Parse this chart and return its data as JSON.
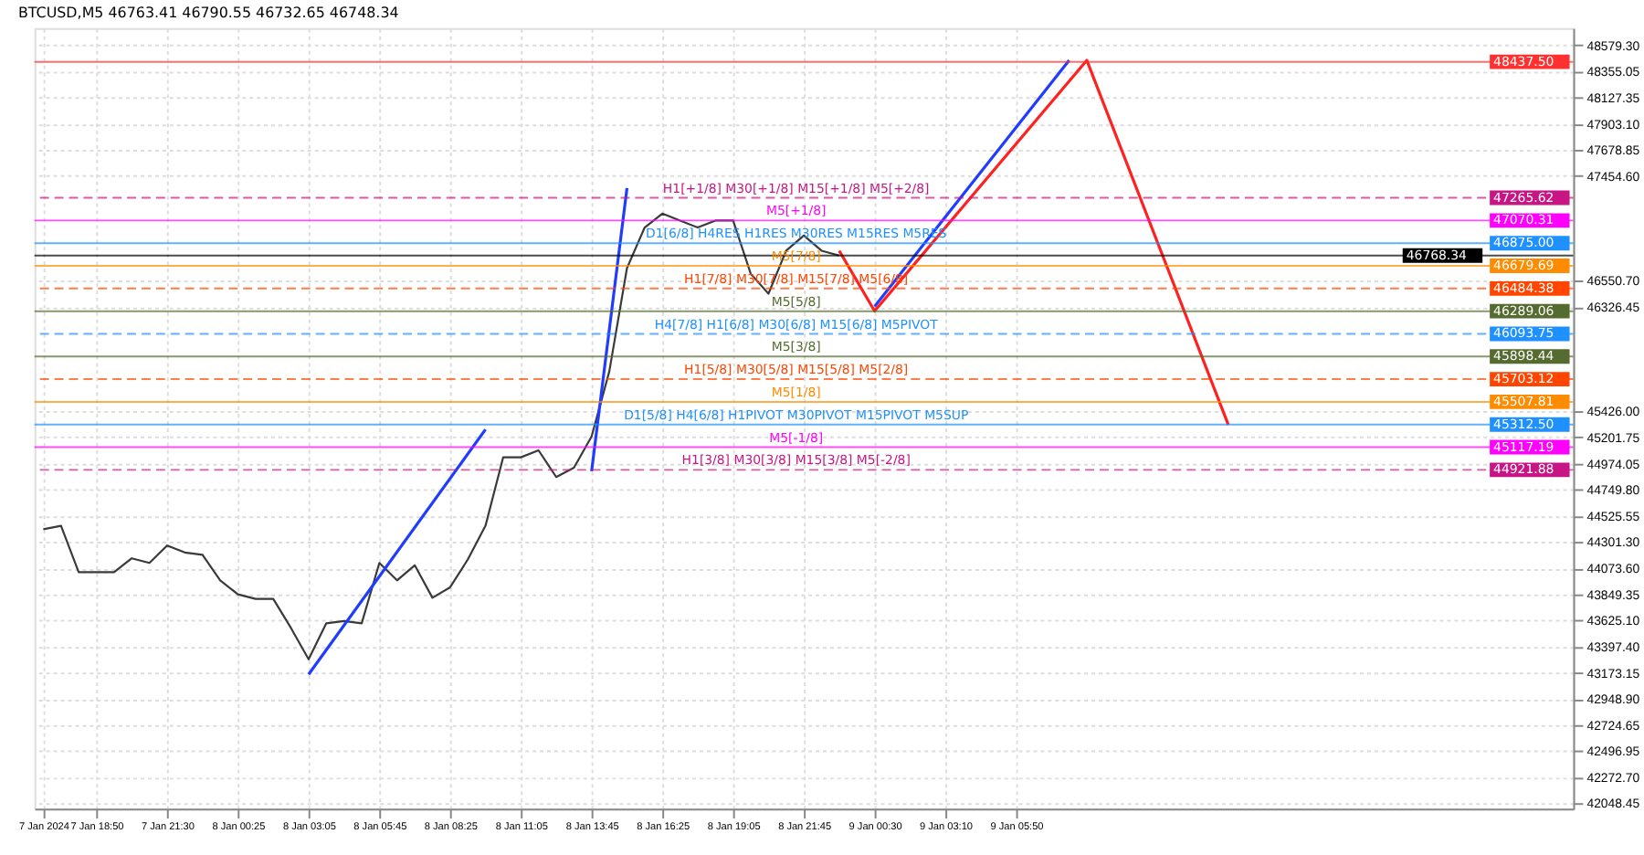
{
  "chart_data": {
    "type": "line",
    "title": "BTCUSD,M5  46763.41 46790.55 46732.65 46748.34",
    "categories": [
      "7 Jan 2024",
      null,
      null,
      "7 Jan 18:50",
      null,
      null,
      null,
      "7 Jan 21:30",
      null,
      null,
      null,
      "8 Jan 00:25",
      null,
      null,
      null,
      "8 Jan 03:05",
      null,
      null,
      null,
      "8 Jan 05:45",
      null,
      null,
      null,
      "8 Jan 08:25",
      null,
      null,
      null,
      "8 Jan 11:05",
      null,
      null,
      null,
      "8 Jan 13:45",
      null,
      null,
      null,
      "8 Jan 16:25",
      null,
      null,
      null,
      "8 Jan 19:05",
      null,
      null,
      null,
      "8 Jan 21:45",
      null,
      null,
      null,
      "9 Jan 00:30",
      null,
      null,
      null,
      "9 Jan 03:10",
      null,
      null,
      null,
      "9 Jan 05:50",
      null,
      null,
      null,
      null,
      null,
      null,
      null,
      null,
      null,
      null,
      null,
      null,
      null,
      null,
      null,
      null,
      null,
      null,
      null,
      null,
      null,
      null,
      null,
      null,
      null,
      null,
      null,
      null,
      null,
      null,
      null
    ],
    "series": [
      {
        "color": "#3a3a3a",
        "values": [
          44410,
          44440,
          44040,
          44040,
          44040,
          44160,
          44120,
          44270,
          44210,
          44190,
          43970,
          43850,
          43810,
          43810,
          43560,
          43290,
          43600,
          43620,
          43600,
          44120,
          43970,
          44100,
          43820,
          43910,
          44150,
          44440,
          45030,
          45030,
          45090,
          44860,
          44940,
          45210,
          45770,
          46660,
          47010,
          47130,
          47070,
          47010,
          47070,
          47070,
          46610,
          46440,
          46810,
          46940,
          46810,
          46768,
          null,
          null,
          null,
          null,
          null,
          null,
          null,
          null,
          null,
          null,
          null,
          null,
          null,
          null,
          null,
          null,
          null,
          null,
          null,
          null,
          null,
          null,
          null,
          null,
          null,
          null,
          null,
          null,
          null,
          null,
          null,
          null,
          null,
          null,
          null,
          null,
          null,
          null,
          null,
          null,
          null
        ]
      },
      {
        "color": "#1f3cff",
        "values": [
          null,
          null,
          null,
          null,
          null,
          null,
          null,
          null,
          null,
          null,
          null,
          null,
          null,
          null,
          null,
          43160,
          null,
          null,
          null,
          null,
          null,
          null,
          null,
          null,
          null,
          45270,
          null,
          null,
          null,
          null,
          null,
          null,
          null,
          null,
          null,
          null,
          null,
          null,
          null,
          null,
          null,
          null,
          null,
          null,
          null,
          null,
          null,
          null,
          null,
          null,
          null,
          null,
          null,
          null,
          null,
          null,
          null,
          null,
          null,
          null,
          null,
          null,
          null,
          null,
          null,
          null,
          null,
          null,
          null,
          null,
          null,
          null,
          null,
          null,
          null,
          null,
          null,
          null,
          null,
          null,
          null,
          null,
          null,
          null,
          null,
          null,
          null
        ]
      },
      {
        "color": "#1f3cff",
        "values": [
          null,
          null,
          null,
          null,
          null,
          null,
          null,
          null,
          null,
          null,
          null,
          null,
          null,
          null,
          null,
          null,
          null,
          null,
          null,
          null,
          null,
          null,
          null,
          null,
          null,
          null,
          null,
          null,
          null,
          null,
          null,
          44910,
          null,
          47350,
          null,
          null,
          null,
          null,
          null,
          null,
          null,
          null,
          null,
          null,
          null,
          null,
          null,
          null,
          null,
          null,
          null,
          null,
          null,
          null,
          null,
          null,
          null,
          null,
          null,
          null,
          null,
          null,
          null,
          null,
          null,
          null,
          null,
          null,
          null,
          null,
          null,
          null,
          null,
          null,
          null,
          null,
          null,
          null,
          null,
          null,
          null,
          null,
          null,
          null,
          null,
          null,
          null
        ]
      },
      {
        "color": "#1f3cff",
        "values": [
          null,
          null,
          null,
          null,
          null,
          null,
          null,
          null,
          null,
          null,
          null,
          null,
          null,
          null,
          null,
          null,
          null,
          null,
          null,
          null,
          null,
          null,
          null,
          null,
          null,
          null,
          null,
          null,
          null,
          null,
          null,
          null,
          null,
          null,
          null,
          null,
          null,
          null,
          null,
          null,
          null,
          null,
          null,
          null,
          null,
          null,
          null,
          46330,
          null,
          null,
          null,
          null,
          null,
          null,
          null,
          null,
          null,
          null,
          48450,
          null,
          null,
          null,
          null,
          null,
          null,
          null,
          null,
          null,
          null,
          null,
          null,
          null,
          null,
          null,
          null,
          null,
          null,
          null,
          null,
          null,
          null,
          null,
          null,
          null,
          null,
          null,
          null
        ]
      },
      {
        "color": "#ff2020",
        "values": [
          null,
          null,
          null,
          null,
          null,
          null,
          null,
          null,
          null,
          null,
          null,
          null,
          null,
          null,
          null,
          null,
          null,
          null,
          null,
          null,
          null,
          null,
          null,
          null,
          null,
          null,
          null,
          null,
          null,
          null,
          null,
          null,
          null,
          null,
          null,
          null,
          null,
          null,
          null,
          null,
          null,
          null,
          null,
          null,
          null,
          46810,
          null,
          46290,
          null,
          null,
          null,
          null,
          null,
          null,
          null,
          null,
          null,
          null,
          null,
          48450,
          null,
          null,
          null,
          null,
          null,
          null,
          null,
          45310,
          null,
          null,
          null,
          null,
          null,
          null,
          null,
          null,
          null,
          null,
          null,
          null,
          null,
          null,
          null,
          null,
          null,
          null,
          null
        ]
      }
    ],
    "ylim": [
      42004,
      48727
    ],
    "yticks": [
      {
        "value": 48579.3,
        "label": "48579.30"
      },
      {
        "value": 48355.05,
        "label": "48355.05"
      },
      {
        "value": 48127.35,
        "label": "48127.35"
      },
      {
        "value": 47903.1,
        "label": "47903.10"
      },
      {
        "value": 47678.85,
        "label": "47678.85"
      },
      {
        "value": 47454.6,
        "label": "47454.60"
      },
      {
        "value": 46550.7,
        "label": "46550.70"
      },
      {
        "value": 46326.45,
        "label": "46326.45"
      },
      {
        "value": 45426,
        "label": "45426.00"
      },
      {
        "value": 45201.75,
        "label": "45201.75"
      },
      {
        "value": 44974.05,
        "label": "44974.05"
      },
      {
        "value": 44749.8,
        "label": "44749.80"
      },
      {
        "value": 44525.55,
        "label": "44525.55"
      },
      {
        "value": 44301.3,
        "label": "44301.30"
      },
      {
        "value": 44073.6,
        "label": "44073.60"
      },
      {
        "value": 43849.35,
        "label": "43849.35"
      },
      {
        "value": 43625.1,
        "label": "43625.10"
      },
      {
        "value": 43397.4,
        "label": "43397.40"
      },
      {
        "value": 43173.15,
        "label": "43173.15"
      },
      {
        "value": 42948.9,
        "label": "42948.90"
      },
      {
        "value": 42724.65,
        "label": "42724.65"
      },
      {
        "value": 42496.95,
        "label": "42496.95"
      },
      {
        "value": 42272.7,
        "label": "42272.70"
      },
      {
        "value": 42048.45,
        "label": "42048.45"
      }
    ],
    "ref_lines": [
      {
        "axis": "y",
        "value": 48437.5,
        "label": "48437.50",
        "color": "#ff3030",
        "line_style": "solid"
      },
      {
        "axis": "y",
        "value": 47265.62,
        "label": "47265.62",
        "color": "#c71585",
        "line_style": "dashed"
      },
      {
        "axis": "y",
        "value": 47070.31,
        "label": "47070.31",
        "color": "#ff00ff",
        "line_style": "solid"
      },
      {
        "axis": "y",
        "value": 46875,
        "label": "46875.00",
        "color": "#1e90ff",
        "line_style": "solid"
      },
      {
        "axis": "y",
        "value": 46768.34,
        "label": "46768.34",
        "color": "#000000",
        "line_style": "solid"
      },
      {
        "axis": "y",
        "value": 46679.69,
        "label": "46679.69",
        "color": "#ff8c00",
        "line_style": "solid"
      },
      {
        "axis": "y",
        "value": 46484.38,
        "label": "46484.38",
        "color": "#ff4500",
        "line_style": "dashed"
      },
      {
        "axis": "y",
        "value": 46289.06,
        "label": "46289.06",
        "color": "#556b2f",
        "line_style": "solid"
      },
      {
        "axis": "y",
        "value": 46093.75,
        "label": "46093.75",
        "color": "#1e90ff",
        "line_style": "dashed"
      },
      {
        "axis": "y",
        "value": 45898.44,
        "label": "45898.44",
        "color": "#556b2f",
        "line_style": "solid"
      },
      {
        "axis": "y",
        "value": 45703.12,
        "label": "45703.12",
        "color": "#ff4500",
        "line_style": "dashed"
      },
      {
        "axis": "y",
        "value": 45507.81,
        "label": "45507.81",
        "color": "#ff8c00",
        "line_style": "solid"
      },
      {
        "axis": "y",
        "value": 45312.5,
        "label": "45312.50",
        "color": "#1e90ff",
        "line_style": "solid"
      },
      {
        "axis": "y",
        "value": 45117.19,
        "label": "45117.19",
        "color": "#ff00ff",
        "line_style": "solid"
      },
      {
        "axis": "y",
        "value": 44921.88,
        "label": "44921.88",
        "color": "#c71585",
        "line_style": "dashed"
      }
    ],
    "annotations": [
      {
        "text": "H1[+1/8] M30[+1/8] M15[+1/8] M5[+2/8]",
        "y": 47265.62
      },
      {
        "text": "M5[+1/8]",
        "y": 47070.31
      },
      {
        "text": "D1[6/8] H4RES H1RES M30RES M15RES M5RES",
        "y": 46875
      },
      {
        "text": "M5[7/8]",
        "y": 46679.69
      },
      {
        "text": "H1[7/8] M30[7/8] M15[7/8] M5[6/8]",
        "y": 46484.38
      },
      {
        "text": "M5[5/8]",
        "y": 46289.06
      },
      {
        "text": "H4[7/8] H1[6/8] M30[6/8] M15[6/8] M5PIVOT",
        "y": 46093.75
      },
      {
        "text": "M5[3/8]",
        "y": 45898.44
      },
      {
        "text": "H1[5/8] M30[5/8] M15[5/8] M5[2/8]",
        "y": 45703.12
      },
      {
        "text": "M5[1/8]",
        "y": 45507.81
      },
      {
        "text": "D1[5/8] H4[6/8] H1PIVOT M30PIVOT M15PIVOT M5SUP",
        "y": 45312.5
      },
      {
        "text": "M5[-1/8]",
        "y": 45117.19
      },
      {
        "text": "H1[3/8] M30[3/8] M15[3/8] M5[-2/8]",
        "y": 44921.88
      }
    ],
    "grid": true,
    "marker": "none",
    "line_style": "solid"
  }
}
